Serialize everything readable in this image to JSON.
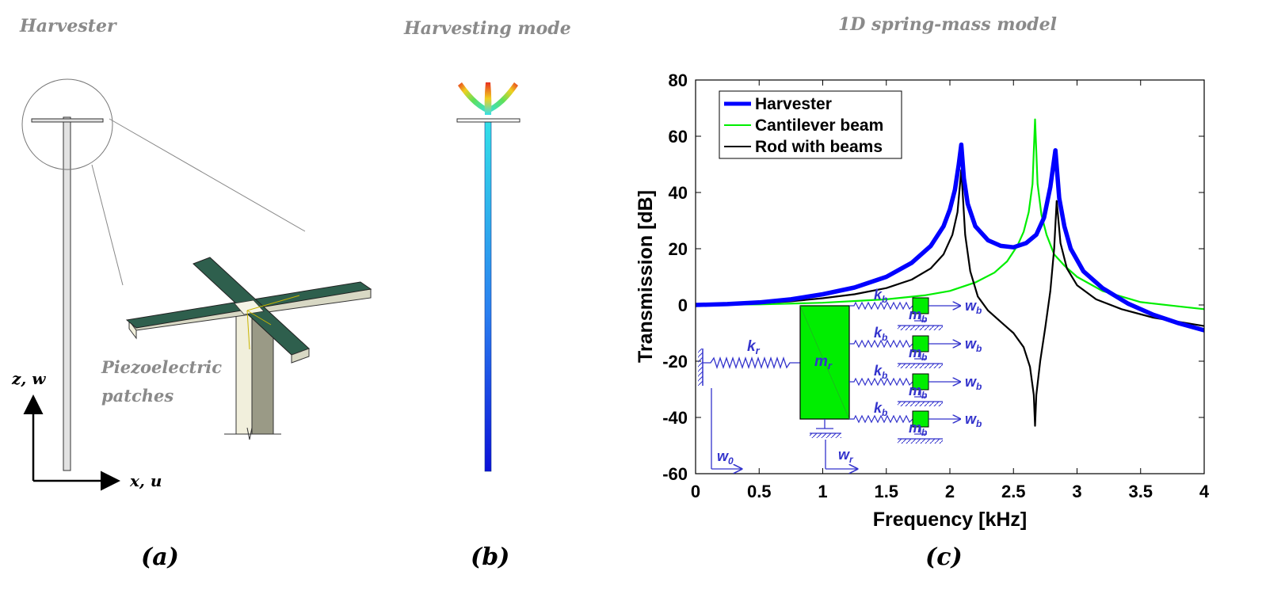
{
  "panel_a": {
    "title": "Harvester",
    "piezo_line1": "Piezoelectric",
    "piezo_line2": "patches",
    "axis_z": "z, w",
    "axis_x": "x, u",
    "label": "(a)"
  },
  "panel_b": {
    "title": "Harvesting mode",
    "label": "(b)"
  },
  "panel_c": {
    "title": "1D spring-mass model",
    "label": "(c)"
  },
  "model_labels": {
    "kr": "k",
    "kr_sub": "r",
    "mr": "m",
    "mr_sub": "r",
    "kb": "k",
    "kb_sub": "b",
    "mb": "m",
    "mb_sub": "b",
    "wb": "w",
    "wb_sub": "b",
    "w0": "w",
    "w0_sub": "0",
    "wr": "w",
    "wr_sub": "r"
  },
  "colors": {
    "harvester": "#0000ff",
    "cantilever": "#00ee00",
    "rod": "#000000",
    "model_blue": "#3333cc",
    "mass_green": "#00ee00"
  },
  "chart_data": {
    "type": "line",
    "title": "",
    "xlabel": "Frequency [kHz]",
    "ylabel": "Transmission [dB]",
    "xlim": [
      0,
      4
    ],
    "ylim": [
      -60,
      80
    ],
    "xticks": [
      0,
      0.5,
      1,
      1.5,
      2,
      2.5,
      3,
      3.5,
      4
    ],
    "xtick_labels": [
      "0",
      "0.5",
      "1",
      "1.5",
      "2",
      "2.5",
      "3",
      "3.5",
      "4"
    ],
    "yticks": [
      -60,
      -40,
      -20,
      0,
      20,
      40,
      60,
      80
    ],
    "ytick_labels": [
      "-60",
      "-40",
      "-20",
      "0",
      "20",
      "40",
      "60",
      "80"
    ],
    "legend_position": "top-left",
    "series": [
      {
        "name": "Harvester",
        "x": [
          0,
          0.25,
          0.5,
          0.75,
          1.0,
          1.25,
          1.5,
          1.7,
          1.85,
          1.95,
          2.0,
          2.04,
          2.07,
          2.09,
          2.11,
          2.14,
          2.2,
          2.3,
          2.4,
          2.5,
          2.6,
          2.68,
          2.74,
          2.79,
          2.83,
          2.86,
          2.9,
          2.95,
          3.05,
          3.2,
          3.4,
          3.6,
          3.8,
          4.0
        ],
        "y": [
          0,
          0.3,
          0.9,
          2.0,
          3.8,
          6.2,
          10.0,
          15.0,
          21.0,
          28.0,
          34.0,
          41.0,
          50.0,
          57.0,
          45.0,
          36.0,
          28.0,
          23.0,
          21.0,
          20.5,
          22.0,
          25.0,
          31.0,
          42.0,
          55.0,
          38.0,
          28.0,
          20.0,
          12.0,
          6.0,
          0.5,
          -3.5,
          -6.5,
          -9.0
        ]
      },
      {
        "name": "Cantilever beam",
        "x": [
          0,
          0.5,
          1.0,
          1.5,
          1.8,
          2.0,
          2.2,
          2.35,
          2.45,
          2.53,
          2.58,
          2.62,
          2.65,
          2.67,
          2.69,
          2.72,
          2.76,
          2.82,
          2.9,
          3.0,
          3.2,
          3.5,
          3.8,
          4.0
        ],
        "y": [
          0,
          0.2,
          0.8,
          2.0,
          3.4,
          5.0,
          8.0,
          11.5,
          15.5,
          21.0,
          26.0,
          33.0,
          43.0,
          66.0,
          43.0,
          32.0,
          25.0,
          18.0,
          14.0,
          10.0,
          5.0,
          1.0,
          -0.5,
          -1.5
        ]
      },
      {
        "name": "Rod with beams",
        "x": [
          0,
          0.25,
          0.5,
          0.75,
          1.0,
          1.25,
          1.5,
          1.7,
          1.85,
          1.95,
          2.02,
          2.06,
          2.09,
          2.12,
          2.16,
          2.22,
          2.3,
          2.4,
          2.5,
          2.58,
          2.63,
          2.66,
          2.67,
          2.68,
          2.71,
          2.75,
          2.79,
          2.82,
          2.84,
          2.87,
          2.92,
          3.0,
          3.15,
          3.35,
          3.6,
          3.8,
          4.0
        ],
        "y": [
          0,
          0.2,
          0.6,
          1.3,
          2.4,
          3.8,
          6.0,
          9.0,
          13.0,
          18.0,
          25.0,
          33.0,
          48.0,
          25.0,
          12.0,
          3.0,
          -2.0,
          -6.0,
          -10.0,
          -15.0,
          -22.0,
          -32.0,
          -43.0,
          -32.0,
          -20.0,
          -8.0,
          5.0,
          20.0,
          37.0,
          22.0,
          13.0,
          7.0,
          2.0,
          -1.5,
          -4.5,
          -6.0,
          -7.5
        ]
      }
    ]
  }
}
